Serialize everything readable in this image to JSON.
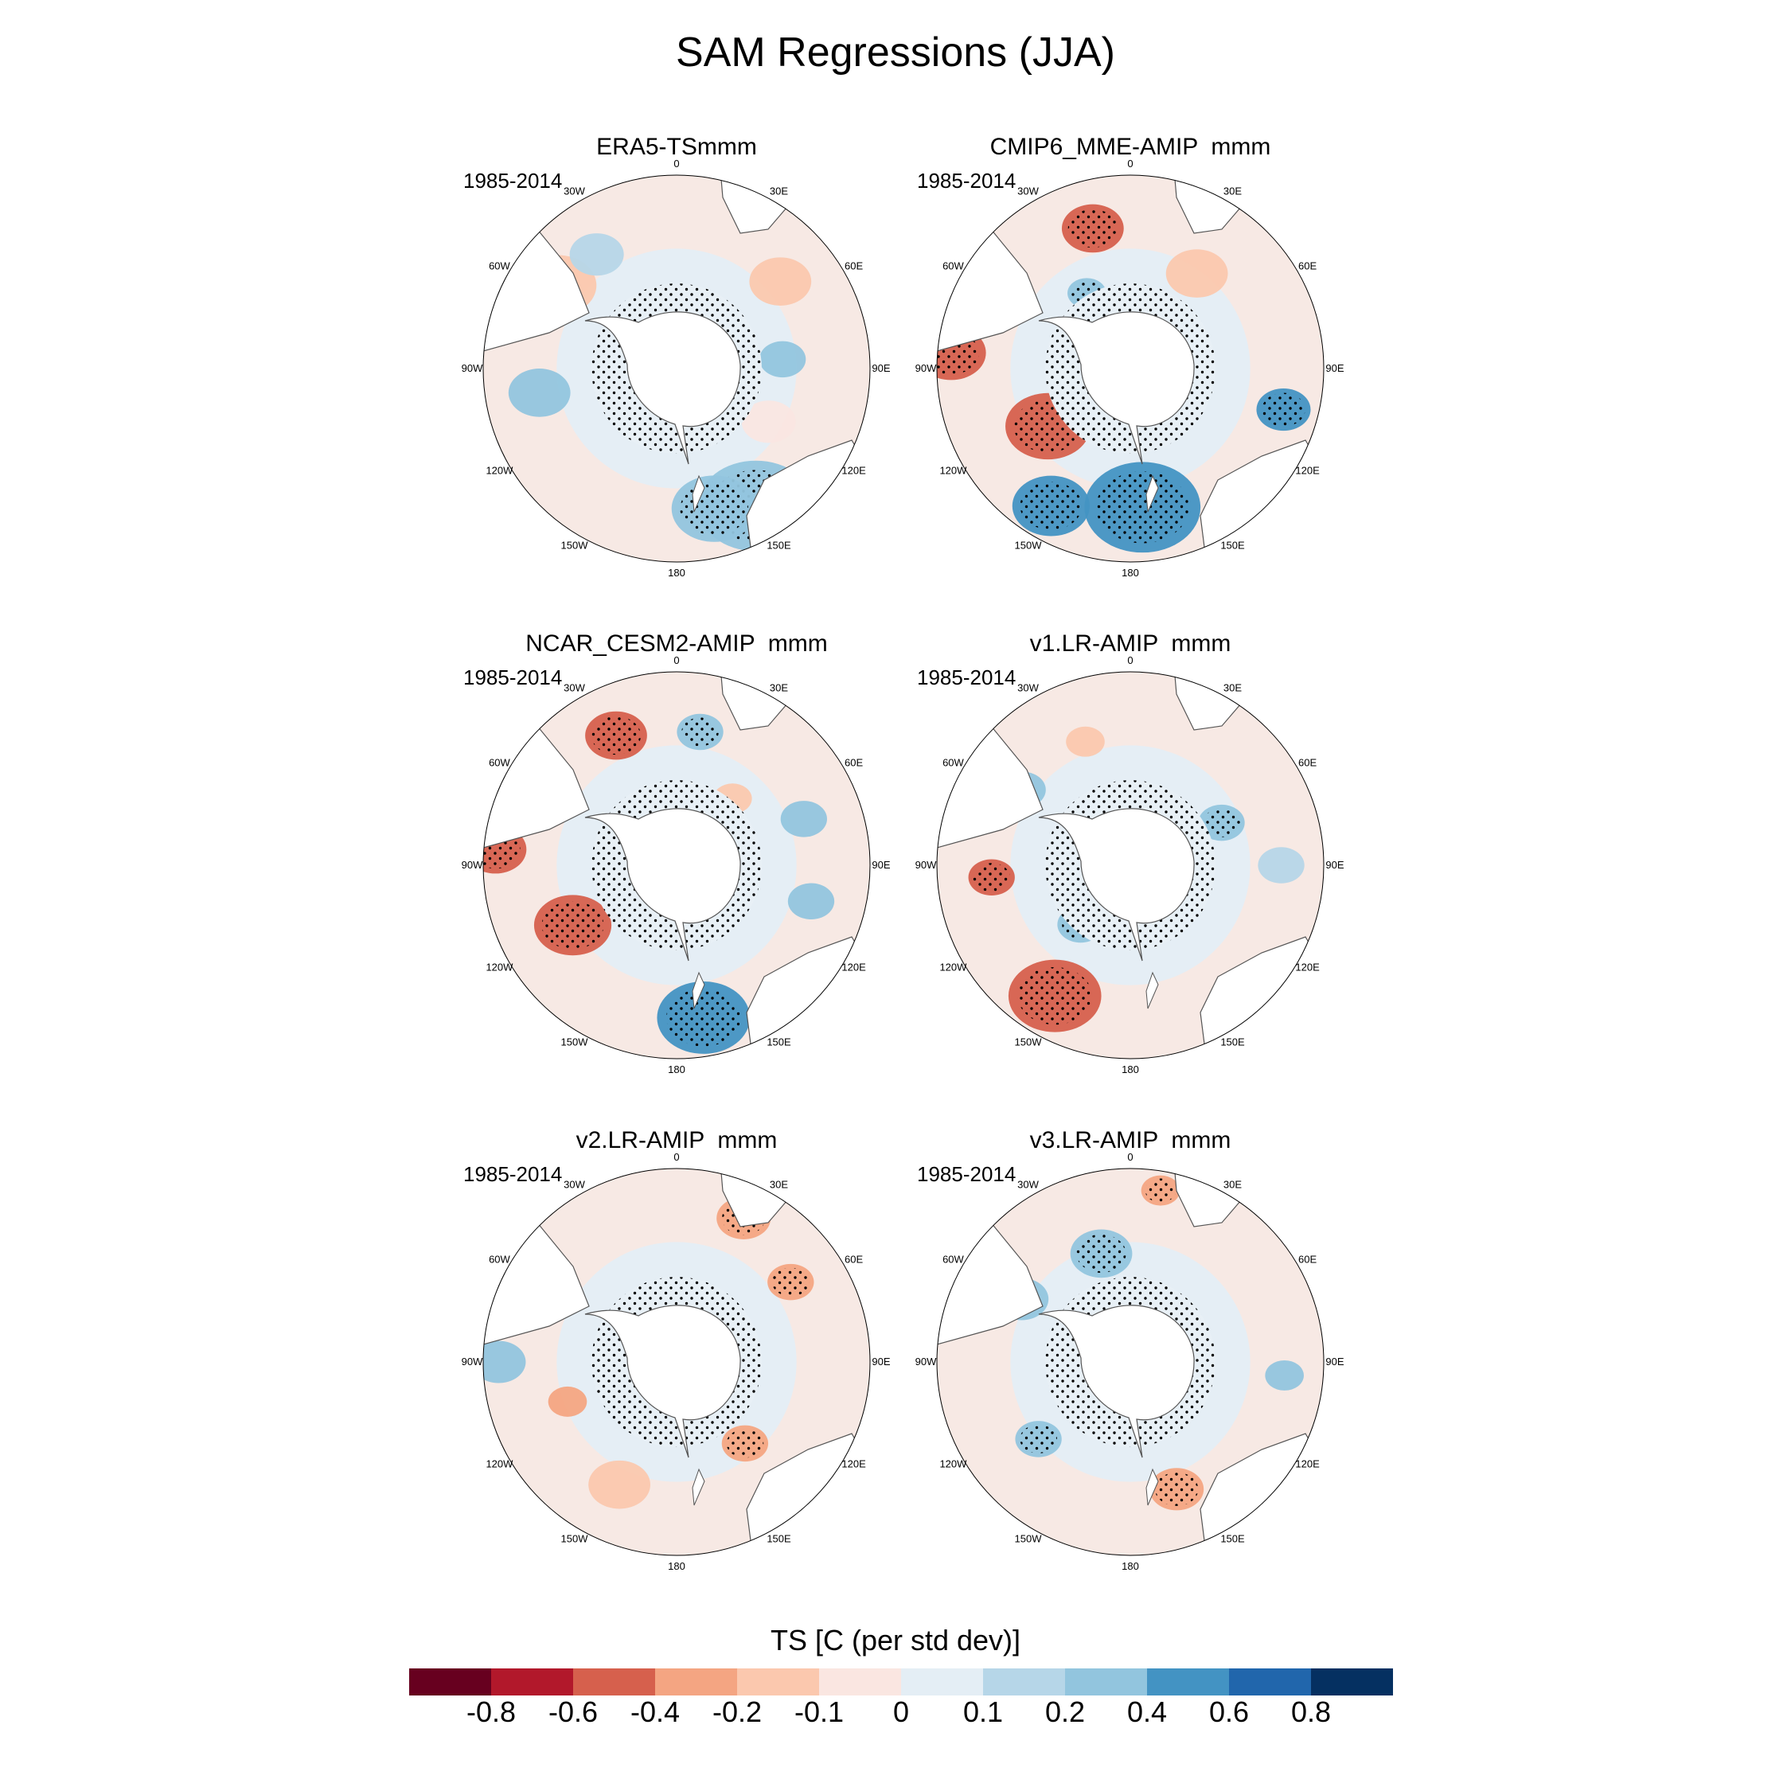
{
  "title": "SAM Regressions (JJA)",
  "panels": [
    {
      "title": "ERA5-TSmmm",
      "period": "1985-2014",
      "features": [
        {
          "lon": 150,
          "r": 0.82,
          "size": 0.3,
          "v": 0.35,
          "stip": true
        },
        {
          "lon": 165,
          "r": 0.75,
          "size": 0.22,
          "v": 0.25,
          "stip": true
        },
        {
          "lon": -100,
          "r": 0.72,
          "size": 0.16,
          "v": 0.2,
          "stip": false
        },
        {
          "lon": -55,
          "r": 0.75,
          "size": 0.2,
          "v": -0.2,
          "stip": false
        },
        {
          "lon": 50,
          "r": 0.7,
          "size": 0.16,
          "v": -0.15,
          "stip": false
        },
        {
          "lon": -35,
          "r": 0.72,
          "size": 0.14,
          "v": 0.15,
          "stip": false
        },
        {
          "lon": 85,
          "r": 0.55,
          "size": 0.12,
          "v": 0.2,
          "stip": false
        },
        {
          "lon": 120,
          "r": 0.55,
          "size": 0.14,
          "v": -0.1,
          "stip": false
        }
      ]
    },
    {
      "title": "CMIP6_MME-AMIP  mmm",
      "period": "1985-2014",
      "features": [
        {
          "lon": -15,
          "r": 0.75,
          "size": 0.16,
          "v": -0.5,
          "stip": true
        },
        {
          "lon": -85,
          "r": 0.93,
          "size": 0.18,
          "v": -0.5,
          "stip": true
        },
        {
          "lon": -125,
          "r": 0.52,
          "size": 0.22,
          "v": -0.55,
          "stip": true
        },
        {
          "lon": 175,
          "r": 0.72,
          "size": 0.3,
          "v": 0.5,
          "stip": true
        },
        {
          "lon": -150,
          "r": 0.82,
          "size": 0.2,
          "v": 0.45,
          "stip": true
        },
        {
          "lon": 105,
          "r": 0.82,
          "size": 0.14,
          "v": 0.4,
          "stip": true
        },
        {
          "lon": -30,
          "r": 0.45,
          "size": 0.1,
          "v": 0.35,
          "stip": true
        },
        {
          "lon": 35,
          "r": 0.6,
          "size": 0.16,
          "v": -0.15,
          "stip": false
        }
      ]
    },
    {
      "title": "NCAR_CESM2-AMIP  mmm",
      "period": "1985-2014",
      "features": [
        {
          "lon": -25,
          "r": 0.74,
          "size": 0.16,
          "v": -0.5,
          "stip": true
        },
        {
          "lon": -85,
          "r": 0.94,
          "size": 0.16,
          "v": -0.5,
          "stip": true
        },
        {
          "lon": -120,
          "r": 0.62,
          "size": 0.2,
          "v": -0.6,
          "stip": true
        },
        {
          "lon": 170,
          "r": 0.8,
          "size": 0.24,
          "v": 0.55,
          "stip": true
        },
        {
          "lon": 10,
          "r": 0.7,
          "size": 0.12,
          "v": 0.35,
          "stip": true
        },
        {
          "lon": 105,
          "r": 0.72,
          "size": 0.12,
          "v": 0.3,
          "stip": false
        },
        {
          "lon": 70,
          "r": 0.7,
          "size": 0.12,
          "v": 0.3,
          "stip": false
        },
        {
          "lon": 40,
          "r": 0.45,
          "size": 0.1,
          "v": -0.2,
          "stip": false
        }
      ]
    },
    {
      "title": "v1.LR-AMIP  mmm",
      "period": "1985-2014",
      "features": [
        {
          "lon": -150,
          "r": 0.78,
          "size": 0.24,
          "v": -0.5,
          "stip": true
        },
        {
          "lon": -95,
          "r": 0.72,
          "size": 0.12,
          "v": -0.5,
          "stip": true
        },
        {
          "lon": -140,
          "r": 0.4,
          "size": 0.12,
          "v": 0.35,
          "stip": true
        },
        {
          "lon": 65,
          "r": 0.52,
          "size": 0.12,
          "v": 0.3,
          "stip": true
        },
        {
          "lon": -55,
          "r": 0.68,
          "size": 0.12,
          "v": 0.3,
          "stip": false
        },
        {
          "lon": -20,
          "r": 0.68,
          "size": 0.1,
          "v": -0.2,
          "stip": false
        },
        {
          "lon": 90,
          "r": 0.78,
          "size": 0.12,
          "v": 0.15,
          "stip": false
        }
      ]
    },
    {
      "title": "v2.LR-AMIP  mmm",
      "period": "1985-2014",
      "features": [
        {
          "lon": 25,
          "r": 0.82,
          "size": 0.14,
          "v": -0.35,
          "stip": true
        },
        {
          "lon": -90,
          "r": 0.92,
          "size": 0.14,
          "v": 0.25,
          "stip": false
        },
        {
          "lon": 140,
          "r": 0.55,
          "size": 0.12,
          "v": -0.3,
          "stip": true
        },
        {
          "lon": -155,
          "r": 0.7,
          "size": 0.16,
          "v": -0.15,
          "stip": false
        },
        {
          "lon": 55,
          "r": 0.72,
          "size": 0.12,
          "v": -0.3,
          "stip": true
        },
        {
          "lon": -110,
          "r": 0.6,
          "size": 0.1,
          "v": -0.3,
          "stip": false
        }
      ]
    },
    {
      "title": "v3.LR-AMIP  mmm",
      "period": "1985-2014",
      "features": [
        {
          "lon": -15,
          "r": 0.58,
          "size": 0.16,
          "v": 0.35,
          "stip": true
        },
        {
          "lon": -130,
          "r": 0.62,
          "size": 0.12,
          "v": 0.35,
          "stip": true
        },
        {
          "lon": 160,
          "r": 0.7,
          "size": 0.14,
          "v": -0.3,
          "stip": true
        },
        {
          "lon": 10,
          "r": 0.9,
          "size": 0.1,
          "v": -0.3,
          "stip": true
        },
        {
          "lon": 95,
          "r": 0.8,
          "size": 0.1,
          "v": 0.25,
          "stip": false
        },
        {
          "lon": -60,
          "r": 0.65,
          "size": 0.14,
          "v": 0.2,
          "stip": false
        }
      ]
    }
  ],
  "lon_labels": [
    "0",
    "30E",
    "60E",
    "90E",
    "120E",
    "150E",
    "180",
    "150W",
    "120W",
    "90W",
    "60W",
    "30W"
  ],
  "colorbar": {
    "title": "TS [C (per std dev)]",
    "colors": [
      "#67001f",
      "#b2182b",
      "#d6604d",
      "#f4a582",
      "#fbc8ae",
      "#fae6e1",
      "#e4eef5",
      "#b6d6e8",
      "#92c5de",
      "#4393c3",
      "#2166ac",
      "#053061"
    ],
    "ticks": [
      "-0.8",
      "-0.6",
      "-0.4",
      "-0.2",
      "-0.1",
      "0",
      "0.1",
      "0.2",
      "0.4",
      "0.6",
      "0.8"
    ]
  }
}
